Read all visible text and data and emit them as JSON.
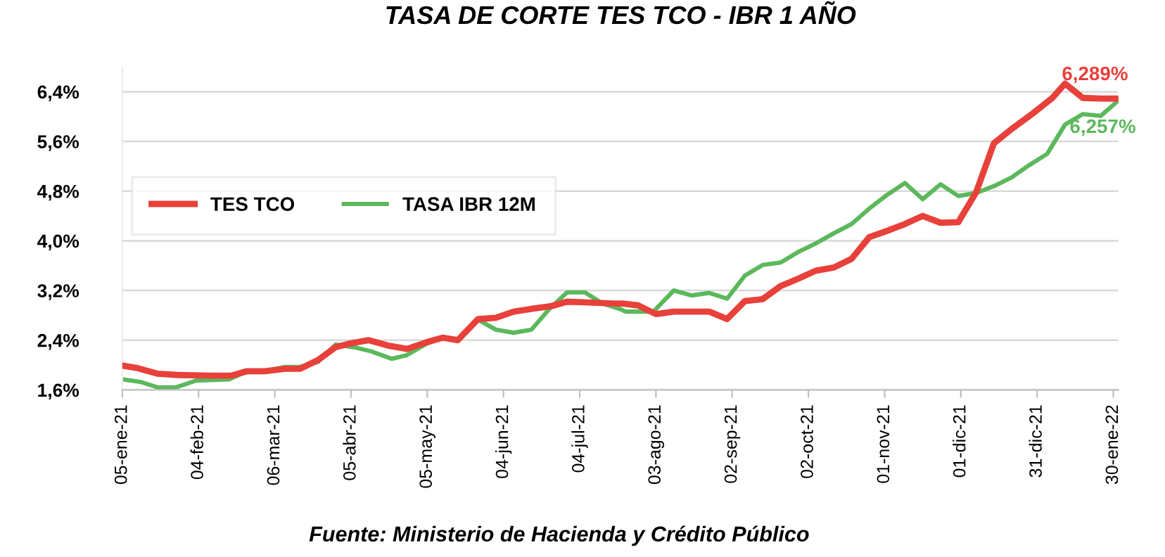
{
  "chart_data": {
    "type": "line",
    "title": "TASA DE CORTE TES TCO - IBR 1 AÑO",
    "series": [
      {
        "name": "TES TCO",
        "color": "#e8403a",
        "x": [
          "2021-01-05",
          "2021-01-11",
          "2021-01-19",
          "2021-01-27",
          "2021-02-09",
          "2021-02-17",
          "2021-02-23",
          "2021-03-02",
          "2021-03-10",
          "2021-03-16",
          "2021-03-23",
          "2021-03-30",
          "2021-04-05",
          "2021-04-12",
          "2021-04-20",
          "2021-04-27",
          "2021-05-05",
          "2021-05-11",
          "2021-05-17",
          "2021-05-25",
          "2021-06-01",
          "2021-06-08",
          "2021-06-16",
          "2021-06-23",
          "2021-06-29",
          "2021-07-06",
          "2021-07-18",
          "2021-07-21",
          "2021-07-27",
          "2021-08-03",
          "2021-08-10",
          "2021-08-24",
          "2021-08-31",
          "2021-09-07",
          "2021-09-14",
          "2021-09-21",
          "2021-09-28",
          "2021-10-05",
          "2021-10-12",
          "2021-10-19",
          "2021-10-26",
          "2021-11-02",
          "2021-11-09",
          "2021-11-16",
          "2021-11-23",
          "2021-11-30",
          "2021-12-07",
          "2021-12-14",
          "2021-12-21",
          "2021-12-29",
          "2022-01-06",
          "2022-01-11",
          "2022-01-18",
          "2022-01-25",
          "2022-02-01"
        ],
        "values": [
          1.99,
          1.95,
          1.86,
          1.84,
          1.83,
          1.83,
          1.9,
          1.9,
          1.94,
          1.94,
          2.08,
          2.29,
          2.35,
          2.4,
          2.31,
          2.26,
          2.37,
          2.44,
          2.4,
          2.74,
          2.76,
          2.86,
          2.91,
          2.95,
          3.02,
          3.01,
          2.99,
          2.99,
          2.96,
          2.82,
          2.86,
          2.86,
          2.74,
          3.03,
          3.06,
          3.27,
          3.39,
          3.52,
          3.57,
          3.71,
          4.06,
          4.16,
          4.27,
          4.4,
          4.29,
          4.3,
          4.78,
          5.57,
          5.8,
          6.04,
          6.3,
          6.53,
          6.3,
          6.29,
          6.289
        ]
      },
      {
        "name": "TASA IBR 12M",
        "color": "#5cb85c",
        "x": [
          "2021-01-05",
          "2021-01-12",
          "2021-01-19",
          "2021-01-26",
          "2021-02-03",
          "2021-02-16",
          "2021-02-23",
          "2021-03-02",
          "2021-03-10",
          "2021-03-16",
          "2021-03-23",
          "2021-03-30",
          "2021-04-07",
          "2021-04-13",
          "2021-04-21",
          "2021-04-27",
          "2021-05-05",
          "2021-05-11",
          "2021-05-17",
          "2021-05-25",
          "2021-06-01",
          "2021-06-08",
          "2021-06-15",
          "2021-06-22",
          "2021-06-29",
          "2021-07-06",
          "2021-07-13",
          "2021-07-20",
          "2021-07-22",
          "2021-08-02",
          "2021-08-10",
          "2021-08-17",
          "2021-08-24",
          "2021-08-31",
          "2021-09-07",
          "2021-09-14",
          "2021-09-21",
          "2021-09-28",
          "2021-10-05",
          "2021-10-12",
          "2021-10-19",
          "2021-10-26",
          "2021-11-02",
          "2021-11-09",
          "2021-11-16",
          "2021-11-23",
          "2021-11-30",
          "2021-12-07",
          "2021-12-14",
          "2021-12-21",
          "2021-12-28",
          "2022-01-04",
          "2022-01-11",
          "2022-01-18",
          "2022-01-25",
          "2022-02-01"
        ],
        "values": [
          1.77,
          1.73,
          1.64,
          1.64,
          1.75,
          1.77,
          1.9,
          1.9,
          1.97,
          1.97,
          2.05,
          2.33,
          2.28,
          2.22,
          2.1,
          2.16,
          2.35,
          2.44,
          2.4,
          2.73,
          2.57,
          2.52,
          2.57,
          2.9,
          3.17,
          3.17,
          2.99,
          2.9,
          2.86,
          2.86,
          3.2,
          3.12,
          3.16,
          3.07,
          3.44,
          3.61,
          3.65,
          3.82,
          3.96,
          4.12,
          4.27,
          4.52,
          4.74,
          4.93,
          4.67,
          4.91,
          4.72,
          4.77,
          4.88,
          5.02,
          5.22,
          5.4,
          5.87,
          6.04,
          6.01,
          6.257
        ]
      }
    ],
    "annotations": [
      {
        "text": "6,289%",
        "x": "2022-02-01",
        "y": 6.289
      },
      {
        "text": "6,257%",
        "x": "2022-02-01",
        "y": 6.257
      },
      "Fuente: Ministerio de Hacienda y Crédito Público"
    ],
    "xlim": [
      "2021-01-05",
      "2022-02-01"
    ],
    "xticks": [
      {
        "value": "2021-01-05",
        "label": "05-ene-21"
      },
      {
        "value": "2021-02-04",
        "label": "04-feb-21"
      },
      {
        "value": "2021-03-06",
        "label": "06-mar-21"
      },
      {
        "value": "2021-04-05",
        "label": "05-abr-21"
      },
      {
        "value": "2021-05-05",
        "label": "05-may-21"
      },
      {
        "value": "2021-06-04",
        "label": "04-jun-21"
      },
      {
        "value": "2021-07-04",
        "label": "04-jul-21"
      },
      {
        "value": "2021-08-03",
        "label": "03-ago-21"
      },
      {
        "value": "2021-09-02",
        "label": "02-sep-21"
      },
      {
        "value": "2021-10-02",
        "label": "02-oct-21"
      },
      {
        "value": "2021-11-01",
        "label": "01-nov-21"
      },
      {
        "value": "2021-12-01",
        "label": "01-dic-21"
      },
      {
        "value": "2021-12-31",
        "label": "31-dic-21"
      },
      {
        "value": "2022-01-30",
        "label": "30-ene-22"
      }
    ],
    "ylim": [
      1.6,
      6.8
    ],
    "yticks": [
      {
        "value": 1.6,
        "label": "1,6%"
      },
      {
        "value": 2.4,
        "label": "2,4%"
      },
      {
        "value": 3.2,
        "label": "3,2%"
      },
      {
        "value": 4.0,
        "label": "4,0%"
      },
      {
        "value": 4.8,
        "label": "4,8%"
      },
      {
        "value": 5.6,
        "label": "5,6%"
      },
      {
        "value": 6.4,
        "label": "6,4%"
      }
    ],
    "grid": "y",
    "legend": "left",
    "marker": "none",
    "line_style": "solid"
  }
}
